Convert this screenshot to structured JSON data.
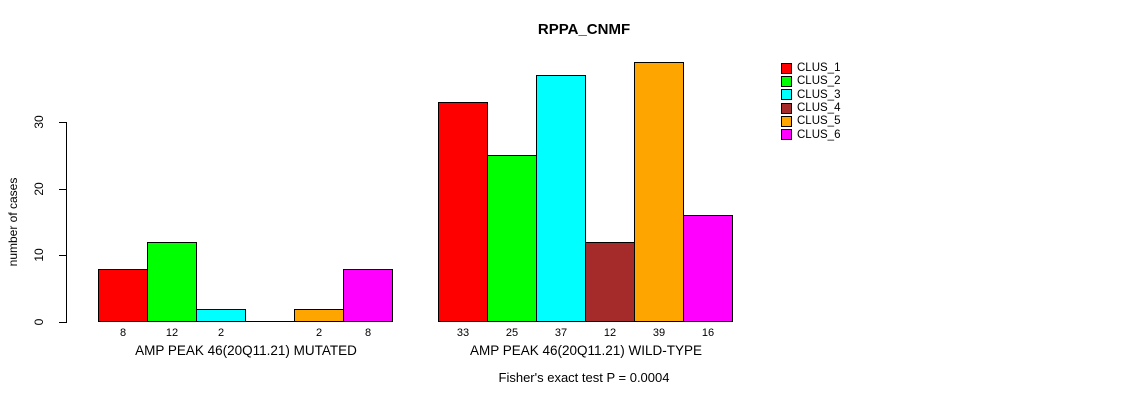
{
  "chart_data": {
    "type": "bar",
    "title": "RPPA_CNMF",
    "ylabel": "number of cases",
    "subtitle": "Fisher's exact test P = 0.0004",
    "yticks": [
      0,
      10,
      20,
      30
    ],
    "ylim": [
      0,
      39
    ],
    "grid": false,
    "legend_position": "right",
    "legend": [
      "CLUS_1",
      "CLUS_2",
      "CLUS_3",
      "CLUS_4",
      "CLUS_5",
      "CLUS_6"
    ],
    "series_colors": [
      "#ff0000",
      "#00ff00",
      "#00ffff",
      "#a52a2a",
      "#ffa500",
      "#ff00ff"
    ],
    "groups": [
      {
        "label": "AMP PEAK 46(20Q11.21) MUTATED",
        "values": [
          8,
          12,
          2,
          0,
          2,
          8
        ],
        "bar_labels": [
          "8",
          "12",
          "2",
          "",
          "2",
          "8"
        ]
      },
      {
        "label": "AMP PEAK 46(20Q11.21) WILD-TYPE",
        "values": [
          33,
          25,
          37,
          12,
          39,
          16
        ],
        "bar_labels": [
          "33",
          "25",
          "37",
          "12",
          "39",
          "16"
        ]
      }
    ]
  }
}
